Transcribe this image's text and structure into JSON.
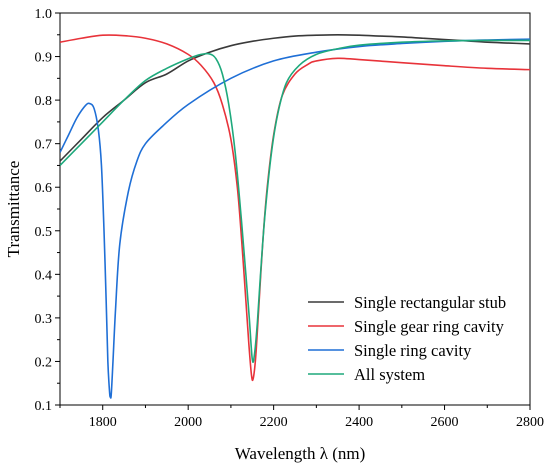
{
  "chart_data": {
    "type": "line",
    "title": "",
    "xlabel": "Wavelength λ (nm)",
    "ylabel": "Transmittance",
    "xlim": [
      1700,
      2800
    ],
    "ylim": [
      0.1,
      1.0
    ],
    "xticks": [
      1800,
      2000,
      2200,
      2400,
      2600,
      2800
    ],
    "yticks": [
      0.1,
      0.2,
      0.3,
      0.4,
      0.5,
      0.6,
      0.7,
      0.8,
      0.9,
      1.0
    ],
    "xtick_labels": [
      "1800",
      "2000",
      "2200",
      "2400",
      "2600",
      "2800"
    ],
    "ytick_labels": [
      "0.1",
      "0.2",
      "0.3",
      "0.4",
      "0.5",
      "0.6",
      "0.7",
      "0.8",
      "0.9",
      "1.0"
    ],
    "grid": false,
    "legend_position": "bottom-right",
    "series": [
      {
        "name": "Single rectangular stub",
        "color": "#3a3a3a",
        "x": [
          1700,
          1750,
          1800,
          1850,
          1900,
          1950,
          2000,
          2050,
          2100,
          2150,
          2200,
          2250,
          2300,
          2350,
          2400,
          2450,
          2500,
          2550,
          2600,
          2650,
          2700,
          2750,
          2800
        ],
        "y": [
          0.66,
          0.71,
          0.76,
          0.8,
          0.84,
          0.86,
          0.89,
          0.91,
          0.925,
          0.935,
          0.942,
          0.947,
          0.949,
          0.95,
          0.949,
          0.947,
          0.945,
          0.942,
          0.939,
          0.936,
          0.933,
          0.931,
          0.929
        ]
      },
      {
        "name": "Single gear ring cavity",
        "color": "#e8333a",
        "x": [
          1700,
          1750,
          1800,
          1850,
          1900,
          1950,
          2000,
          2030,
          2060,
          2080,
          2100,
          2115,
          2125,
          2135,
          2142,
          2148,
          2152,
          2158,
          2165,
          2175,
          2185,
          2200,
          2220,
          2250,
          2280,
          2300,
          2350,
          2400,
          2500,
          2600,
          2700,
          2800
        ],
        "y": [
          0.933,
          0.942,
          0.949,
          0.948,
          0.942,
          0.929,
          0.905,
          0.88,
          0.84,
          0.79,
          0.71,
          0.6,
          0.48,
          0.34,
          0.24,
          0.17,
          0.16,
          0.21,
          0.32,
          0.48,
          0.6,
          0.72,
          0.81,
          0.86,
          0.882,
          0.89,
          0.896,
          0.893,
          0.886,
          0.879,
          0.873,
          0.87
        ]
      },
      {
        "name": "Single ring cavity",
        "color": "#1f6fd6",
        "x": [
          1700,
          1720,
          1740,
          1760,
          1770,
          1780,
          1790,
          1797,
          1803,
          1808,
          1812,
          1816,
          1818,
          1820,
          1824,
          1830,
          1840,
          1860,
          1880,
          1900,
          1940,
          2000,
          2100,
          2200,
          2300,
          2400,
          2500,
          2600,
          2700,
          2800
        ],
        "y": [
          0.68,
          0.72,
          0.76,
          0.788,
          0.792,
          0.78,
          0.73,
          0.65,
          0.5,
          0.34,
          0.2,
          0.13,
          0.118,
          0.125,
          0.2,
          0.32,
          0.47,
          0.59,
          0.66,
          0.7,
          0.74,
          0.79,
          0.85,
          0.89,
          0.91,
          0.923,
          0.93,
          0.935,
          0.938,
          0.94
        ]
      },
      {
        "name": "All system",
        "color": "#1ea97c",
        "x": [
          1700,
          1750,
          1800,
          1850,
          1900,
          1950,
          2000,
          2030,
          2050,
          2065,
          2080,
          2095,
          2110,
          2125,
          2135,
          2143,
          2150,
          2155,
          2162,
          2170,
          2180,
          2195,
          2210,
          2230,
          2260,
          2300,
          2350,
          2400,
          2500,
          2600,
          2700,
          2800
        ],
        "y": [
          0.65,
          0.7,
          0.75,
          0.8,
          0.845,
          0.873,
          0.895,
          0.905,
          0.906,
          0.895,
          0.86,
          0.79,
          0.68,
          0.52,
          0.4,
          0.3,
          0.205,
          0.215,
          0.29,
          0.41,
          0.54,
          0.68,
          0.77,
          0.84,
          0.88,
          0.905,
          0.918,
          0.926,
          0.933,
          0.936,
          0.937,
          0.937
        ]
      }
    ]
  }
}
